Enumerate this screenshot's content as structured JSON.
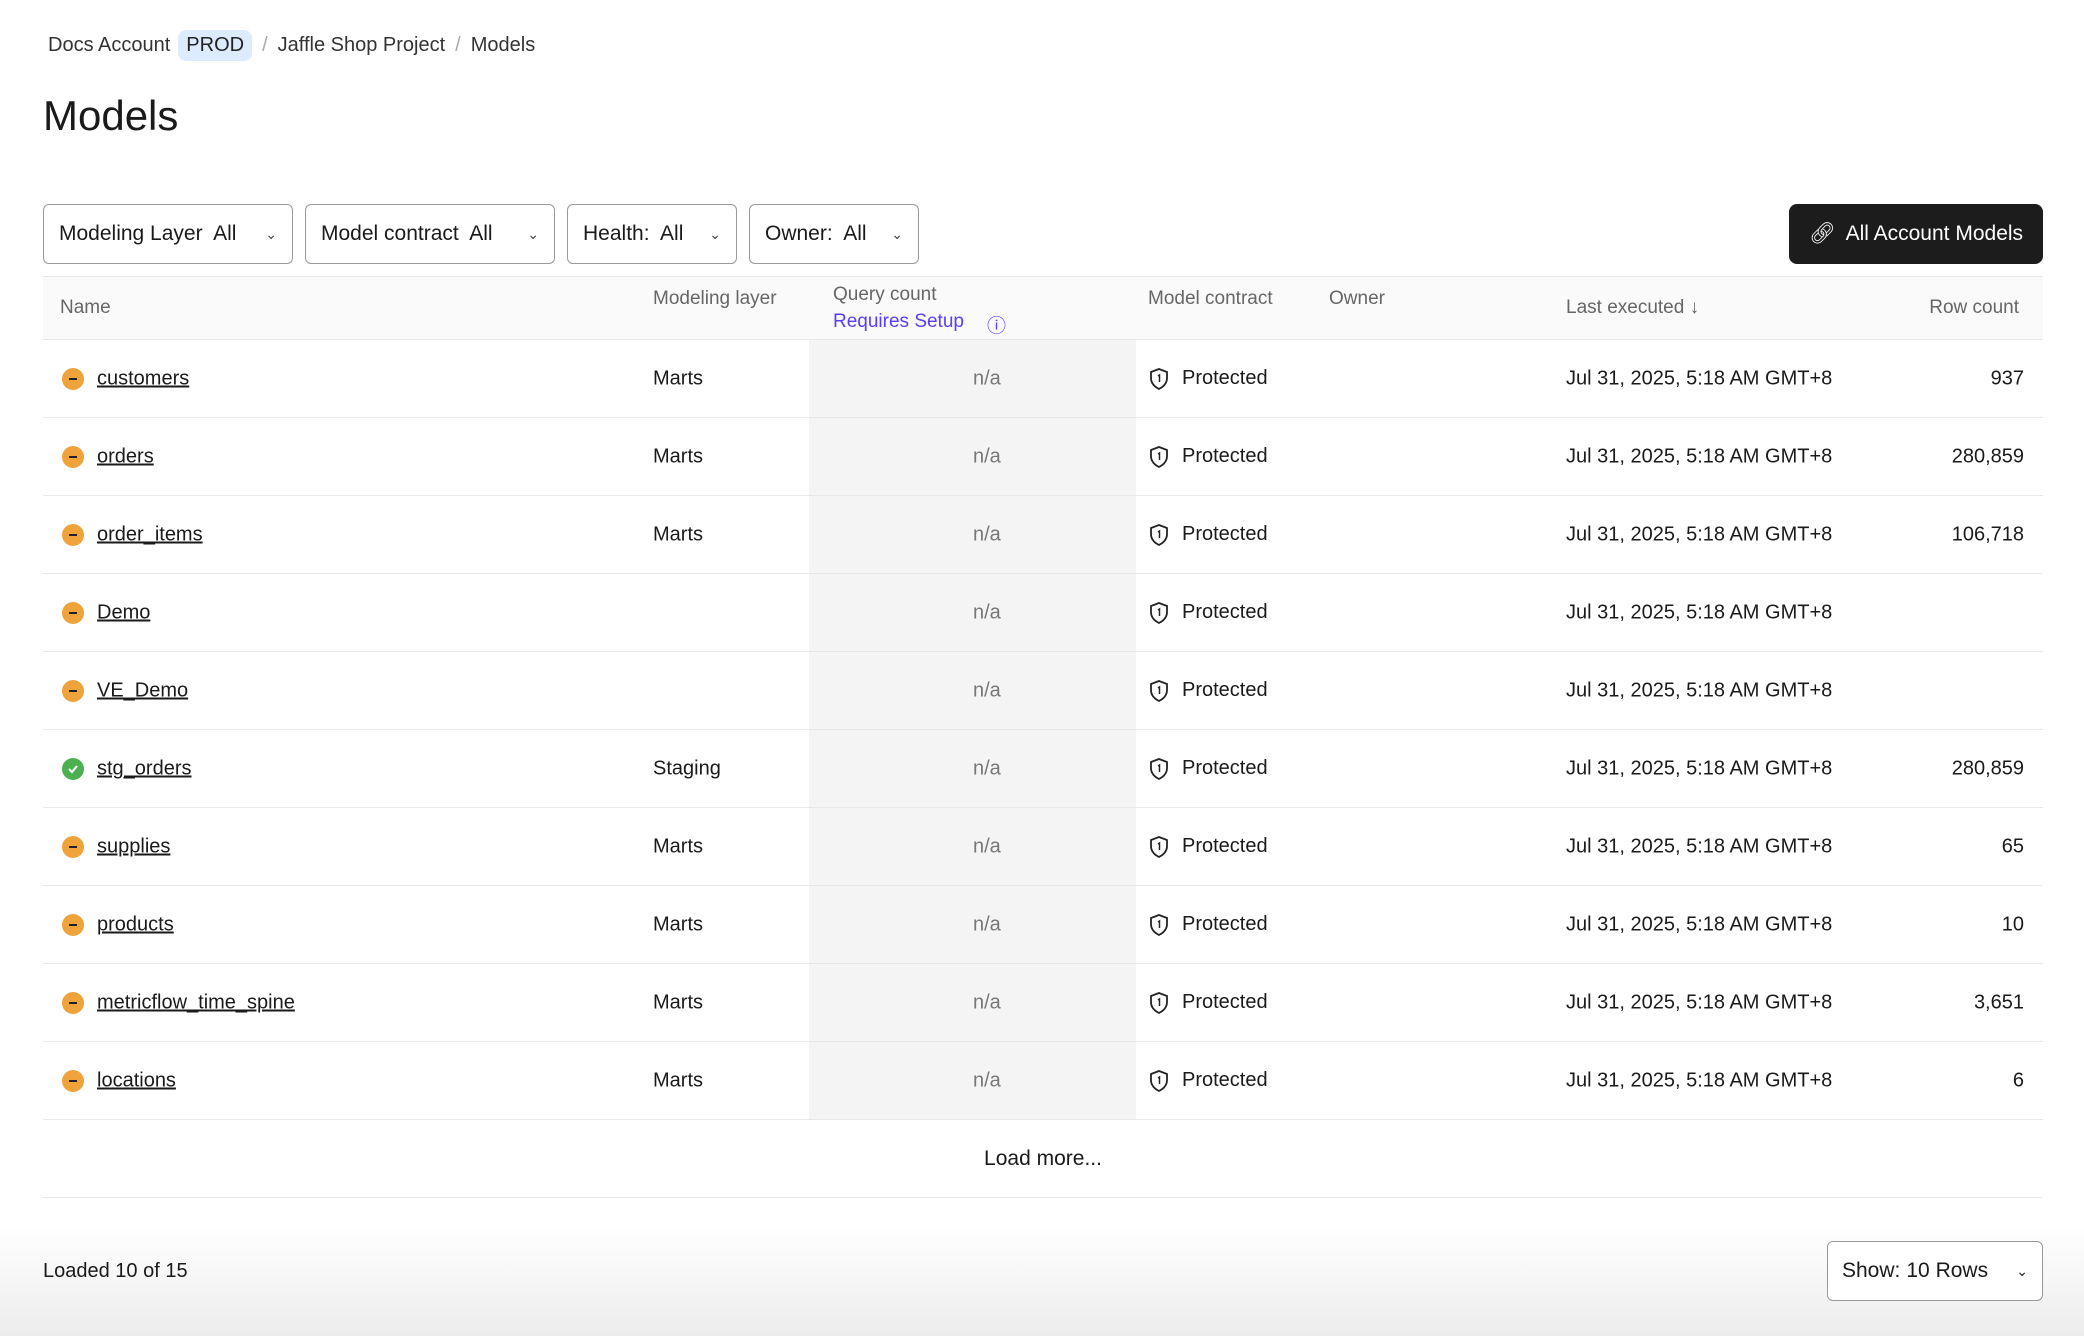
{
  "breadcrumb": {
    "account": "Docs Account",
    "env": "PROD",
    "project": "Jaffle Shop Project",
    "page": "Models"
  },
  "title": "Models",
  "filters": [
    {
      "label": "Modeling Layer  All"
    },
    {
      "label": "Model contract  All"
    },
    {
      "label": "Health:  All"
    },
    {
      "label": "Owner:  All"
    }
  ],
  "all_models_button": "All Account Models",
  "columns": {
    "name": "Name",
    "layer": "Modeling layer",
    "query": "Query count",
    "requires": "Requires Setup",
    "contract": "Model contract",
    "owner": "Owner",
    "executed": "Last executed ↓",
    "rows": "Row count"
  },
  "colors": {
    "warn": "#f0a23b",
    "ok": "#4cb050",
    "link": "#5b3df5"
  },
  "rows": [
    {
      "name": "customers",
      "status": "warning",
      "layer": "Marts",
      "query": "n/a",
      "contract": "Protected",
      "executed": "Jul 31, 2025, 5:18 AM GMT+8",
      "rows": "937"
    },
    {
      "name": "orders",
      "status": "warning",
      "layer": "Marts",
      "query": "n/a",
      "contract": "Protected",
      "executed": "Jul 31, 2025, 5:18 AM GMT+8",
      "rows": "280,859"
    },
    {
      "name": "order_items",
      "status": "warning",
      "layer": "Marts",
      "query": "n/a",
      "contract": "Protected",
      "executed": "Jul 31, 2025, 5:18 AM GMT+8",
      "rows": "106,718"
    },
    {
      "name": "Demo",
      "status": "warning",
      "layer": "",
      "query": "n/a",
      "contract": "Protected",
      "executed": "Jul 31, 2025, 5:18 AM GMT+8",
      "rows": ""
    },
    {
      "name": "VE_Demo",
      "status": "warning",
      "layer": "",
      "query": "n/a",
      "contract": "Protected",
      "executed": "Jul 31, 2025, 5:18 AM GMT+8",
      "rows": ""
    },
    {
      "name": "stg_orders",
      "status": "healthy",
      "layer": "Staging",
      "query": "n/a",
      "contract": "Protected",
      "executed": "Jul 31, 2025, 5:18 AM GMT+8",
      "rows": "280,859"
    },
    {
      "name": "supplies",
      "status": "warning",
      "layer": "Marts",
      "query": "n/a",
      "contract": "Protected",
      "executed": "Jul 31, 2025, 5:18 AM GMT+8",
      "rows": "65"
    },
    {
      "name": "products",
      "status": "warning",
      "layer": "Marts",
      "query": "n/a",
      "contract": "Protected",
      "executed": "Jul 31, 2025, 5:18 AM GMT+8",
      "rows": "10"
    },
    {
      "name": "metricflow_time_spine",
      "status": "warning",
      "layer": "Marts",
      "query": "n/a",
      "contract": "Protected",
      "executed": "Jul 31, 2025, 5:18 AM GMT+8",
      "rows": "3,651"
    },
    {
      "name": "locations",
      "status": "warning",
      "layer": "Marts",
      "query": "n/a",
      "contract": "Protected",
      "executed": "Jul 31, 2025, 5:18 AM GMT+8",
      "rows": "6"
    }
  ],
  "load_more": "Load more...",
  "footer": {
    "loaded": "Loaded 10 of 15",
    "show_label": "Show:",
    "show_value": "10 Rows"
  }
}
